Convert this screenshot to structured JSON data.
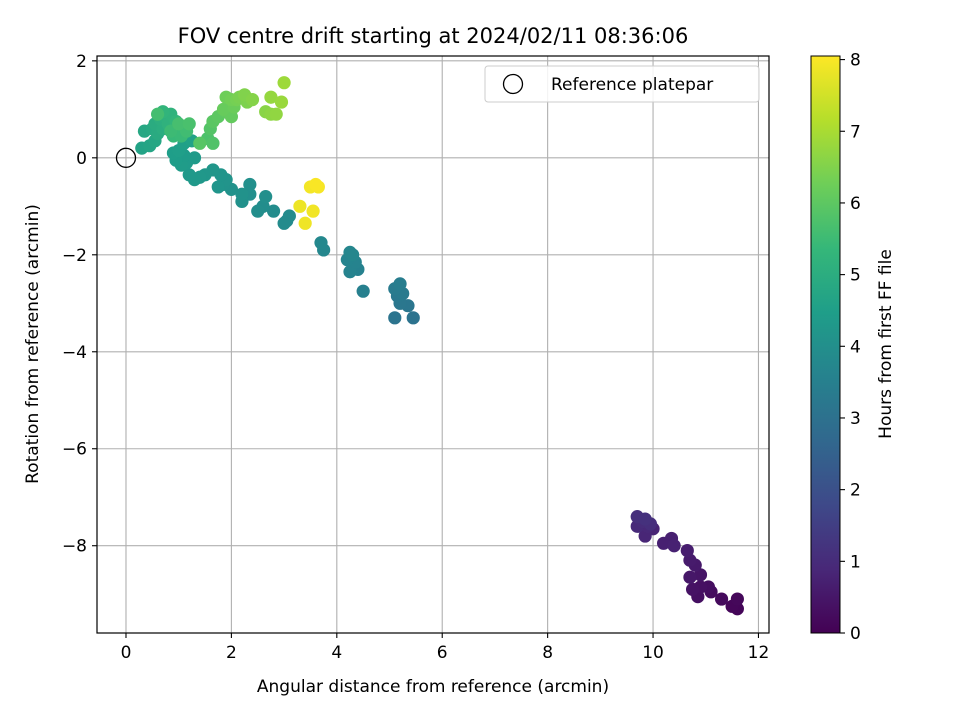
{
  "chart_data": {
    "type": "scatter",
    "title": "FOV centre drift starting at 2024/02/11 08:36:06",
    "xlabel": "Angular distance from reference (arcmin)",
    "ylabel": "Rotation from reference (arcmin)",
    "xlim": [
      -0.55,
      12.2
    ],
    "ylim": [
      -9.8,
      2.1
    ],
    "xticks": [
      0,
      2,
      4,
      6,
      8,
      10,
      12
    ],
    "yticks": [
      2,
      0,
      -2,
      -4,
      -6,
      -8
    ],
    "xtick_labels": [
      "0",
      "2",
      "4",
      "6",
      "8",
      "10",
      "12"
    ],
    "ytick_labels": [
      "2",
      "0",
      "−2",
      "−4",
      "−6",
      "−8"
    ],
    "grid": true,
    "legend": {
      "position": "upper-right",
      "entries": [
        "Reference platepar"
      ]
    },
    "reference_point": {
      "x": 0,
      "y": 0,
      "marker": "hollow-circle"
    },
    "colorbar": {
      "label": "Hours from first FF file",
      "colormap": "viridis",
      "range": [
        0,
        8.05
      ],
      "ticks": [
        0,
        1,
        2,
        3,
        4,
        5,
        6,
        7,
        8
      ],
      "tick_labels": [
        "0",
        "1",
        "2",
        "3",
        "4",
        "5",
        "6",
        "7",
        "8"
      ],
      "colormap_stops": [
        "#440154",
        "#482878",
        "#3e4989",
        "#31688e",
        "#26828e",
        "#1f9e89",
        "#35b779",
        "#6ece58",
        "#b5de2b",
        "#fde725"
      ]
    },
    "points": [
      {
        "x": 11.6,
        "y": -9.3,
        "h": 0.1
      },
      {
        "x": 11.5,
        "y": -9.25,
        "h": 0.12
      },
      {
        "x": 11.6,
        "y": -9.1,
        "h": 0.15
      },
      {
        "x": 11.3,
        "y": -9.1,
        "h": 0.2
      },
      {
        "x": 11.1,
        "y": -8.95,
        "h": 0.25
      },
      {
        "x": 11.05,
        "y": -8.85,
        "h": 0.3
      },
      {
        "x": 10.85,
        "y": -9.05,
        "h": 0.33
      },
      {
        "x": 10.9,
        "y": -8.85,
        "h": 0.35
      },
      {
        "x": 10.75,
        "y": -8.9,
        "h": 0.4
      },
      {
        "x": 10.9,
        "y": -8.6,
        "h": 0.45
      },
      {
        "x": 10.7,
        "y": -8.65,
        "h": 0.5
      },
      {
        "x": 10.8,
        "y": -8.4,
        "h": 0.55
      },
      {
        "x": 10.7,
        "y": -8.3,
        "h": 0.6
      },
      {
        "x": 10.65,
        "y": -8.1,
        "h": 0.65
      },
      {
        "x": 10.35,
        "y": -7.85,
        "h": 0.7
      },
      {
        "x": 10.2,
        "y": -7.95,
        "h": 0.72
      },
      {
        "x": 10.4,
        "y": -8.0,
        "h": 0.75
      },
      {
        "x": 10.0,
        "y": -7.65,
        "h": 0.8
      },
      {
        "x": 9.85,
        "y": -7.8,
        "h": 0.85
      },
      {
        "x": 9.9,
        "y": -7.6,
        "h": 0.9
      },
      {
        "x": 9.7,
        "y": -7.6,
        "h": 0.95
      },
      {
        "x": 9.8,
        "y": -7.5,
        "h": 1.0
      },
      {
        "x": 9.95,
        "y": -7.55,
        "h": 1.05
      },
      {
        "x": 9.7,
        "y": -7.4,
        "h": 1.1
      },
      {
        "x": 9.85,
        "y": -7.45,
        "h": 1.15
      },
      {
        "x": 5.45,
        "y": -3.3,
        "h": 3.05
      },
      {
        "x": 5.1,
        "y": -3.3,
        "h": 3.1
      },
      {
        "x": 5.35,
        "y": -3.05,
        "h": 3.15
      },
      {
        "x": 5.2,
        "y": -3.0,
        "h": 3.2
      },
      {
        "x": 5.15,
        "y": -2.85,
        "h": 3.25
      },
      {
        "x": 5.25,
        "y": -2.8,
        "h": 3.3
      },
      {
        "x": 5.1,
        "y": -2.7,
        "h": 3.35
      },
      {
        "x": 5.2,
        "y": -2.6,
        "h": 3.4
      },
      {
        "x": 4.5,
        "y": -2.75,
        "h": 3.5
      },
      {
        "x": 4.4,
        "y": -2.3,
        "h": 3.55
      },
      {
        "x": 4.25,
        "y": -2.35,
        "h": 3.6
      },
      {
        "x": 4.35,
        "y": -2.15,
        "h": 3.62
      },
      {
        "x": 4.2,
        "y": -2.1,
        "h": 3.65
      },
      {
        "x": 4.3,
        "y": -2.0,
        "h": 3.7
      },
      {
        "x": 4.25,
        "y": -1.95,
        "h": 3.72
      },
      {
        "x": 3.75,
        "y": -1.9,
        "h": 3.75
      },
      {
        "x": 3.7,
        "y": -1.75,
        "h": 3.78
      },
      {
        "x": 3.05,
        "y": -1.3,
        "h": 3.82
      },
      {
        "x": 3.1,
        "y": -1.2,
        "h": 3.85
      },
      {
        "x": 3.0,
        "y": -1.35,
        "h": 3.88
      },
      {
        "x": 2.8,
        "y": -1.1,
        "h": 3.9
      },
      {
        "x": 2.6,
        "y": -1.0,
        "h": 3.92
      },
      {
        "x": 2.5,
        "y": -1.1,
        "h": 3.95
      },
      {
        "x": 2.65,
        "y": -0.8,
        "h": 3.98
      },
      {
        "x": 2.35,
        "y": -0.75,
        "h": 4.0
      },
      {
        "x": 2.35,
        "y": -0.55,
        "h": 4.02
      },
      {
        "x": 2.2,
        "y": -0.9,
        "h": 4.05
      },
      {
        "x": 2.2,
        "y": -0.75,
        "h": 4.08
      },
      {
        "x": 2.0,
        "y": -0.65,
        "h": 4.1
      },
      {
        "x": 1.85,
        "y": -0.55,
        "h": 4.12
      },
      {
        "x": 1.9,
        "y": -0.45,
        "h": 4.15
      },
      {
        "x": 1.75,
        "y": -0.6,
        "h": 4.18
      },
      {
        "x": 1.8,
        "y": -0.35,
        "h": 4.2
      },
      {
        "x": 1.65,
        "y": -0.25,
        "h": 4.22
      },
      {
        "x": 1.5,
        "y": -0.35,
        "h": 4.25
      },
      {
        "x": 1.4,
        "y": -0.4,
        "h": 4.28
      },
      {
        "x": 1.3,
        "y": -0.45,
        "h": 4.3
      },
      {
        "x": 1.2,
        "y": -0.35,
        "h": 4.32
      },
      {
        "x": 1.3,
        "y": 0.0,
        "h": 4.35
      },
      {
        "x": 1.15,
        "y": -0.1,
        "h": 4.38
      },
      {
        "x": 1.05,
        "y": -0.15,
        "h": 4.4
      },
      {
        "x": 1.1,
        "y": 0.05,
        "h": 4.42
      },
      {
        "x": 0.95,
        "y": -0.05,
        "h": 4.45
      },
      {
        "x": 0.9,
        "y": 0.1,
        "h": 4.48
      },
      {
        "x": 1.0,
        "y": 0.15,
        "h": 4.5
      },
      {
        "x": 1.1,
        "y": 0.3,
        "h": 4.55
      },
      {
        "x": 1.25,
        "y": 0.35,
        "h": 4.6
      },
      {
        "x": 0.3,
        "y": 0.2,
        "h": 4.65
      },
      {
        "x": 0.45,
        "y": 0.25,
        "h": 4.7
      },
      {
        "x": 0.55,
        "y": 0.35,
        "h": 4.75
      },
      {
        "x": 0.35,
        "y": 0.55,
        "h": 4.8
      },
      {
        "x": 0.5,
        "y": 0.6,
        "h": 4.85
      },
      {
        "x": 0.6,
        "y": 0.5,
        "h": 4.9
      },
      {
        "x": 0.55,
        "y": 0.7,
        "h": 4.95
      },
      {
        "x": 0.7,
        "y": 0.6,
        "h": 5.0
      },
      {
        "x": 0.65,
        "y": 0.8,
        "h": 5.05
      },
      {
        "x": 0.75,
        "y": 0.85,
        "h": 5.1
      },
      {
        "x": 0.8,
        "y": 0.7,
        "h": 5.15
      },
      {
        "x": 0.85,
        "y": 0.9,
        "h": 5.2
      },
      {
        "x": 0.7,
        "y": 0.95,
        "h": 5.25
      },
      {
        "x": 0.95,
        "y": 0.75,
        "h": 5.3
      },
      {
        "x": 1.0,
        "y": 0.6,
        "h": 5.35
      },
      {
        "x": 0.9,
        "y": 0.45,
        "h": 5.4
      },
      {
        "x": 1.05,
        "y": 0.45,
        "h": 5.45
      },
      {
        "x": 0.85,
        "y": 0.55,
        "h": 5.5
      },
      {
        "x": 1.15,
        "y": 0.55,
        "h": 5.55
      },
      {
        "x": 0.6,
        "y": 0.9,
        "h": 5.6
      },
      {
        "x": 1.0,
        "y": 0.7,
        "h": 5.65
      },
      {
        "x": 1.2,
        "y": 0.7,
        "h": 5.7
      },
      {
        "x": 1.55,
        "y": 0.4,
        "h": 5.75
      },
      {
        "x": 1.65,
        "y": 0.3,
        "h": 5.8
      },
      {
        "x": 1.6,
        "y": 0.6,
        "h": 5.85
      },
      {
        "x": 1.4,
        "y": 0.3,
        "h": 5.9
      },
      {
        "x": 1.65,
        "y": 0.75,
        "h": 5.95
      },
      {
        "x": 1.75,
        "y": 0.85,
        "h": 6.0
      },
      {
        "x": 1.9,
        "y": 0.95,
        "h": 6.05
      },
      {
        "x": 2.0,
        "y": 0.85,
        "h": 6.1
      },
      {
        "x": 1.85,
        "y": 1.0,
        "h": 6.15
      },
      {
        "x": 2.05,
        "y": 1.05,
        "h": 6.2
      },
      {
        "x": 1.9,
        "y": 1.25,
        "h": 6.25
      },
      {
        "x": 2.0,
        "y": 1.2,
        "h": 6.3
      },
      {
        "x": 2.1,
        "y": 1.2,
        "h": 6.35
      },
      {
        "x": 2.15,
        "y": 1.25,
        "h": 6.4
      },
      {
        "x": 2.3,
        "y": 1.15,
        "h": 6.45
      },
      {
        "x": 2.25,
        "y": 1.3,
        "h": 6.5
      },
      {
        "x": 2.4,
        "y": 1.2,
        "h": 6.55
      },
      {
        "x": 2.65,
        "y": 0.95,
        "h": 6.6
      },
      {
        "x": 2.75,
        "y": 0.9,
        "h": 6.65
      },
      {
        "x": 2.85,
        "y": 0.9,
        "h": 6.7
      },
      {
        "x": 2.75,
        "y": 1.25,
        "h": 6.75
      },
      {
        "x": 2.95,
        "y": 1.15,
        "h": 6.8
      },
      {
        "x": 3.0,
        "y": 1.55,
        "h": 6.85
      },
      {
        "x": 3.3,
        "y": -1.0,
        "h": 7.85
      },
      {
        "x": 3.4,
        "y": -1.35,
        "h": 7.88
      },
      {
        "x": 3.55,
        "y": -1.1,
        "h": 7.9
      },
      {
        "x": 3.5,
        "y": -0.6,
        "h": 7.93
      },
      {
        "x": 3.65,
        "y": -0.6,
        "h": 7.96
      },
      {
        "x": 3.6,
        "y": -0.55,
        "h": 8.0
      }
    ]
  }
}
